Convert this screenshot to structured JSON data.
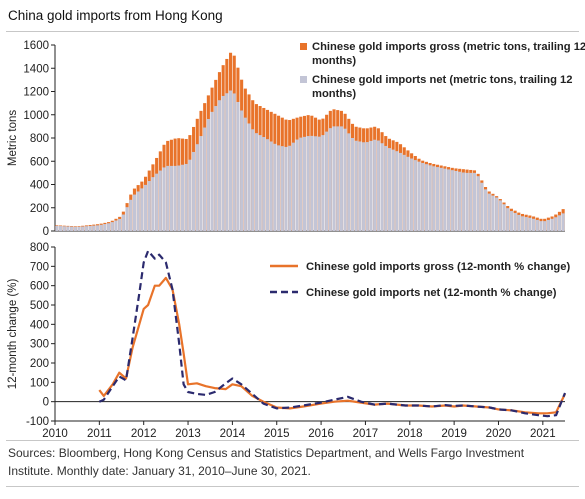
{
  "title": "China gold imports from Hong Kong",
  "source": "Sources: Bloomberg, Hong Kong Census and Statistics Department, and Wells Fargo Investment Institute. Monthly date: January 31, 2010–June 30, 2021.",
  "colors": {
    "gross": "#e8732a",
    "net": "#c3c5d6",
    "net_line": "#2b2a6e",
    "axis": "#222222"
  },
  "chart_data": [
    {
      "type": "bar",
      "stacked_overlay": true,
      "ylabel": "Metric tons",
      "ylim": [
        0,
        1600
      ],
      "yticks": [
        0,
        200,
        400,
        600,
        800,
        1000,
        1200,
        1400,
        1600
      ],
      "xlim": [
        2010.0,
        2021.5
      ],
      "legend_position": "top-right",
      "x_points": [
        [
          2010.0,
          "gross"
        ],
        [
          2010.5
        ],
        [
          2011.0
        ],
        [
          2011.25
        ],
        [
          2011.5
        ],
        [
          2011.75
        ],
        [
          2012.0
        ],
        [
          2012.25
        ],
        [
          2012.5
        ],
        [
          2012.75
        ],
        [
          2013.0
        ],
        [
          2013.25
        ],
        [
          2013.5
        ],
        [
          2013.75
        ],
        [
          2014.0
        ],
        [
          2014.25
        ],
        [
          2014.5
        ],
        [
          2014.75
        ],
        [
          2015.0
        ],
        [
          2015.25
        ],
        [
          2015.5
        ],
        [
          2015.75
        ],
        [
          2016.0
        ],
        [
          2016.25
        ],
        [
          2016.5
        ],
        [
          2016.75
        ],
        [
          2017.0
        ],
        [
          2017.25
        ],
        [
          2017.5
        ],
        [
          2017.75
        ],
        [
          2018.0
        ],
        [
          2018.25
        ],
        [
          2018.5
        ],
        [
          2018.75
        ],
        [
          2019.0
        ],
        [
          2019.25
        ],
        [
          2019.5
        ],
        [
          2019.75
        ],
        [
          2020.0
        ],
        [
          2020.25
        ],
        [
          2020.5
        ],
        [
          2020.75
        ],
        [
          2021.0
        ],
        [
          2021.25
        ],
        [
          2021.5
        ]
      ],
      "series": [
        {
          "name": "Chinese gold imports gross (metric tons, trailing 12 months)",
          "x": [
            2010.0,
            2010.5,
            2011.0,
            2011.25,
            2011.5,
            2011.75,
            2012.0,
            2012.25,
            2012.5,
            2012.75,
            2013.0,
            2013.25,
            2013.5,
            2013.75,
            2014.0,
            2014.25,
            2014.5,
            2014.75,
            2015.0,
            2015.25,
            2015.5,
            2015.75,
            2016.0,
            2016.25,
            2016.5,
            2016.75,
            2017.0,
            2017.25,
            2017.5,
            2017.75,
            2018.0,
            2018.25,
            2018.5,
            2018.75,
            2019.0,
            2019.25,
            2019.5,
            2019.75,
            2020.0,
            2020.25,
            2020.5,
            2020.75,
            2021.0,
            2021.25,
            2021.5
          ],
          "values": [
            50,
            40,
            60,
            80,
            130,
            350,
            440,
            600,
            770,
            800,
            790,
            1000,
            1200,
            1400,
            1560,
            1250,
            1100,
            1050,
            1000,
            950,
            980,
            1000,
            950,
            1050,
            1030,
            900,
            880,
            900,
            800,
            760,
            680,
            610,
            580,
            560,
            540,
            530,
            520,
            350,
            290,
            200,
            150,
            130,
            100,
            130,
            200
          ]
        },
        {
          "name": "Chinese gold imports net (metric tons, trailing 12 months)",
          "x": [
            2010.0,
            2010.5,
            2011.0,
            2011.25,
            2011.5,
            2011.75,
            2012.0,
            2012.25,
            2012.5,
            2012.75,
            2013.0,
            2013.25,
            2013.5,
            2013.75,
            2014.0,
            2014.25,
            2014.5,
            2014.75,
            2015.0,
            2015.25,
            2015.5,
            2015.75,
            2016.0,
            2016.25,
            2016.5,
            2016.75,
            2017.0,
            2017.25,
            2017.5,
            2017.75,
            2018.0,
            2018.25,
            2018.5,
            2018.75,
            2019.0,
            2019.25,
            2019.5,
            2019.75,
            2020.0,
            2020.25,
            2020.5,
            2020.75,
            2021.0,
            2021.25,
            2021.5
          ],
          "values": [
            45,
            35,
            50,
            70,
            110,
            300,
            380,
            480,
            560,
            560,
            580,
            780,
            1000,
            1150,
            1220,
            1000,
            850,
            800,
            740,
            720,
            800,
            820,
            810,
            900,
            900,
            780,
            760,
            790,
            720,
            680,
            630,
            590,
            560,
            540,
            520,
            500,
            500,
            330,
            280,
            180,
            130,
            110,
            80,
            110,
            160
          ]
        }
      ]
    },
    {
      "type": "line",
      "ylabel": "12-month change (%)",
      "ylim": [
        -100,
        800
      ],
      "yticks": [
        -100,
        0,
        100,
        200,
        300,
        400,
        500,
        600,
        700,
        800
      ],
      "xlim": [
        2010.0,
        2021.5
      ],
      "xticks": [
        2010,
        2011,
        2012,
        2013,
        2014,
        2015,
        2016,
        2017,
        2018,
        2019,
        2020,
        2021
      ],
      "legend_position": "top-right",
      "series": [
        {
          "name": "Chinese gold imports gross (12-month % change)",
          "style": "solid",
          "x": [
            2011.0,
            2011.1,
            2011.3,
            2011.45,
            2011.6,
            2011.75,
            2011.9,
            2012.0,
            2012.1,
            2012.25,
            2012.35,
            2012.5,
            2012.65,
            2012.8,
            2012.9,
            2013.0,
            2013.2,
            2013.4,
            2013.6,
            2013.85,
            2014.0,
            2014.2,
            2014.45,
            2014.7,
            2015.0,
            2015.3,
            2015.6,
            2016.0,
            2016.3,
            2016.6,
            2016.9,
            2017.2,
            2017.5,
            2017.9,
            2018.2,
            2018.5,
            2018.8,
            2019.0,
            2019.2,
            2019.5,
            2019.8,
            2020.0,
            2020.3,
            2020.6,
            2020.9,
            2021.1,
            2021.3,
            2021.5
          ],
          "values": [
            60,
            30,
            90,
            150,
            120,
            280,
            400,
            480,
            500,
            600,
            600,
            640,
            580,
            400,
            250,
            90,
            95,
            80,
            70,
            65,
            90,
            80,
            30,
            0,
            -30,
            -35,
            -25,
            -10,
            0,
            5,
            -5,
            -15,
            -10,
            -20,
            -20,
            -25,
            -20,
            -25,
            -20,
            -25,
            -30,
            -40,
            -45,
            -55,
            -60,
            -60,
            -55,
            40
          ]
        },
        {
          "name": "Chinese gold imports net (12-month % change)",
          "style": "dashed",
          "x": [
            2011.0,
            2011.1,
            2011.3,
            2011.45,
            2011.6,
            2011.75,
            2011.9,
            2012.0,
            2012.1,
            2012.25,
            2012.35,
            2012.5,
            2012.65,
            2012.8,
            2012.9,
            2013.0,
            2013.2,
            2013.4,
            2013.6,
            2013.85,
            2014.0,
            2014.2,
            2014.45,
            2014.7,
            2015.0,
            2015.3,
            2015.6,
            2016.0,
            2016.3,
            2016.6,
            2016.9,
            2017.2,
            2017.5,
            2017.9,
            2018.2,
            2018.5,
            2018.8,
            2019.0,
            2019.2,
            2019.5,
            2019.8,
            2020.0,
            2020.3,
            2020.6,
            2020.9,
            2021.1,
            2021.3,
            2021.5
          ],
          "values": [
            0,
            10,
            80,
            130,
            110,
            330,
            560,
            720,
            780,
            740,
            760,
            720,
            580,
            300,
            90,
            50,
            40,
            35,
            50,
            95,
            120,
            90,
            40,
            -10,
            -35,
            -30,
            -20,
            -5,
            10,
            25,
            0,
            -15,
            -10,
            -20,
            -20,
            -25,
            -18,
            -22,
            -20,
            -25,
            -30,
            -40,
            -45,
            -60,
            -70,
            -75,
            -70,
            45
          ]
        }
      ]
    }
  ]
}
